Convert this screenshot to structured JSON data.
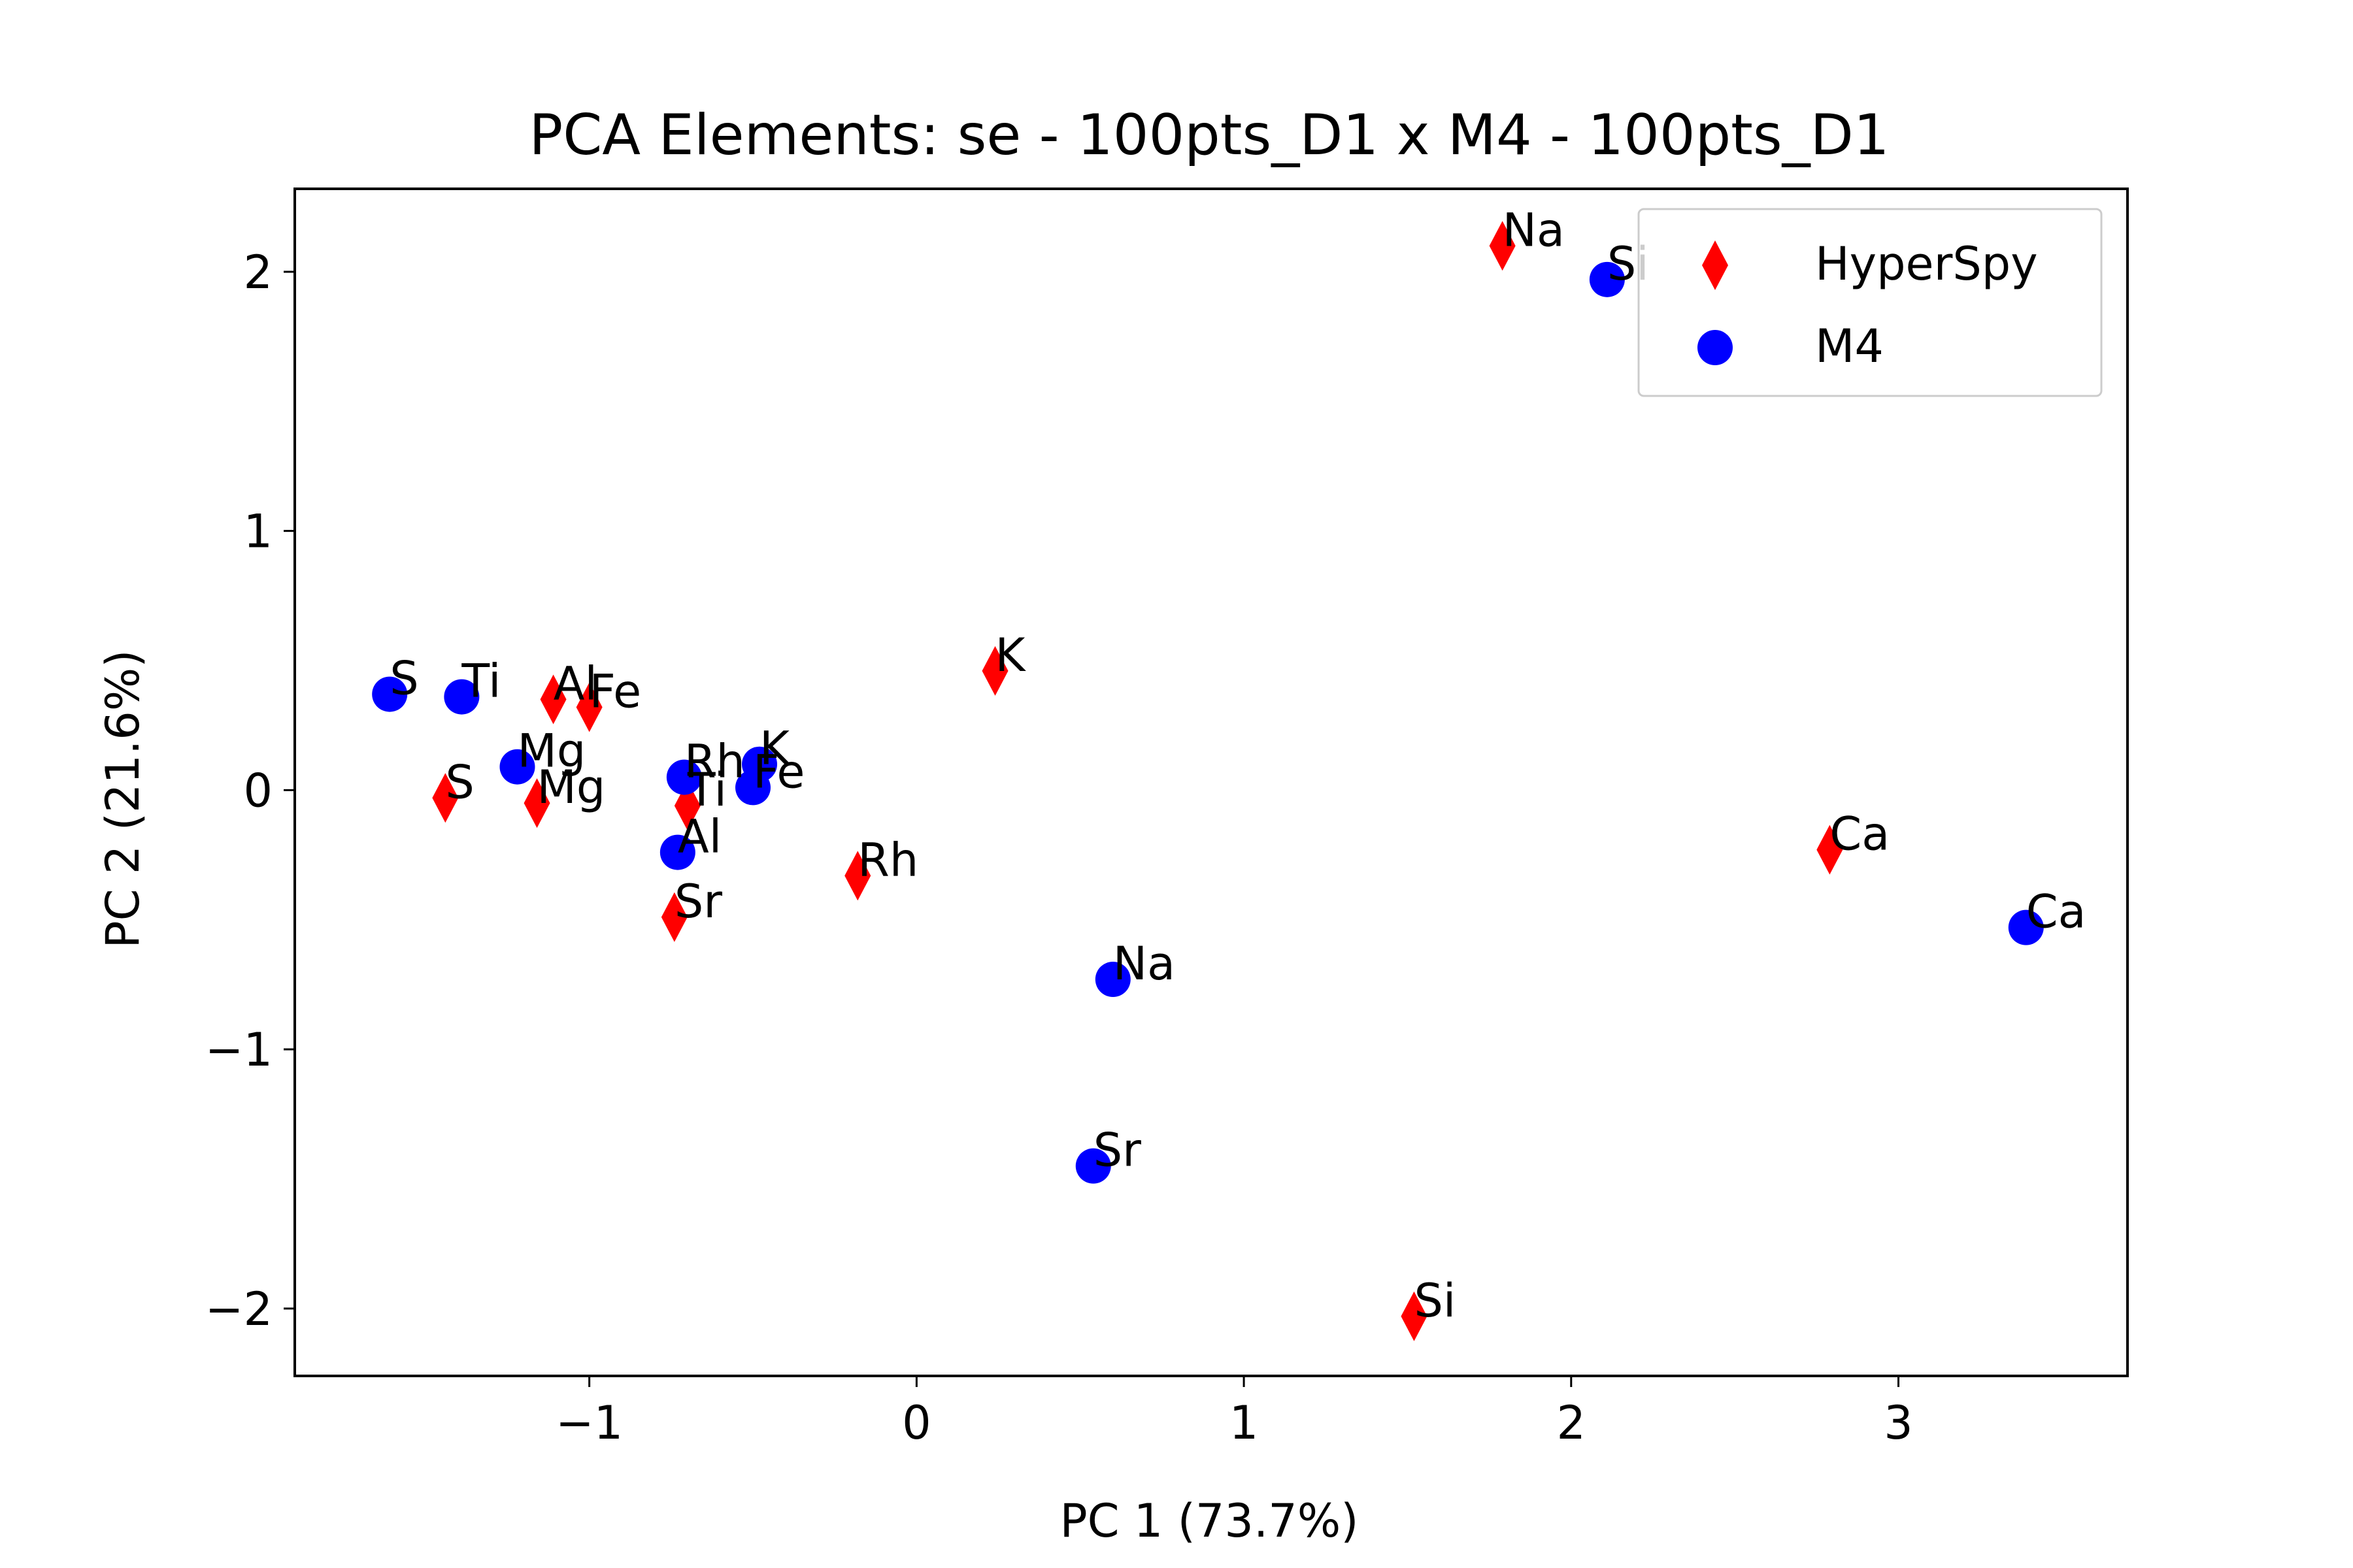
{
  "chart_data": {
    "type": "scatter",
    "title": "PCA Elements: se - 100pts_D1 x M4 - 100pts_D1",
    "xlabel": "PC 1 (73.7%)",
    "ylabel": "PC 2 (21.6%)",
    "xlim": [
      -1.9,
      3.7
    ],
    "ylim": [
      -2.26,
      2.32
    ],
    "xticks": [
      -1,
      0,
      1,
      2,
      3
    ],
    "yticks": [
      -2,
      -1,
      0,
      1,
      2
    ],
    "xtick_labels": [
      "−1",
      "0",
      "1",
      "2",
      "3"
    ],
    "ytick_labels": [
      "−2",
      "−1",
      "0",
      "1",
      "2"
    ],
    "grid": false,
    "legend_position": "top-right",
    "series": [
      {
        "name": "HyperSpy",
        "marker": "thin-diamond",
        "color": "#ff0000",
        "points": [
          {
            "label": "Na",
            "x": 1.79,
            "y": 2.1
          },
          {
            "label": "K",
            "x": 0.24,
            "y": 0.46
          },
          {
            "label": "Al",
            "x": -1.11,
            "y": 0.35
          },
          {
            "label": "Fe",
            "x": -1.0,
            "y": 0.32
          },
          {
            "label": "S",
            "x": -1.44,
            "y": -0.03
          },
          {
            "label": "Mg",
            "x": -1.16,
            "y": -0.05
          },
          {
            "label": "Ti",
            "x": -0.7,
            "y": -0.06
          },
          {
            "label": "Rh",
            "x": -0.18,
            "y": -0.33
          },
          {
            "label": "Sr",
            "x": -0.74,
            "y": -0.49
          },
          {
            "label": "Ca",
            "x": 2.79,
            "y": -0.23
          },
          {
            "label": "Si",
            "x": 1.52,
            "y": -2.03
          }
        ]
      },
      {
        "name": "M4",
        "marker": "circle",
        "color": "#0000ff",
        "points": [
          {
            "label": "Si",
            "x": 2.11,
            "y": 1.97
          },
          {
            "label": "S",
            "x": -1.61,
            "y": 0.37
          },
          {
            "label": "Ti",
            "x": -1.39,
            "y": 0.36
          },
          {
            "label": "Mg",
            "x": -1.22,
            "y": 0.09
          },
          {
            "label": "Rh",
            "x": -0.71,
            "y": 0.05
          },
          {
            "label": "K",
            "x": -0.48,
            "y": 0.1
          },
          {
            "label": "Fe",
            "x": -0.5,
            "y": 0.01
          },
          {
            "label": "Al",
            "x": -0.73,
            "y": -0.24
          },
          {
            "label": "Na",
            "x": 0.6,
            "y": -0.73
          },
          {
            "label": "Sr",
            "x": 0.54,
            "y": -1.45
          },
          {
            "label": "Ca",
            "x": 3.39,
            "y": -0.53
          }
        ]
      }
    ]
  }
}
